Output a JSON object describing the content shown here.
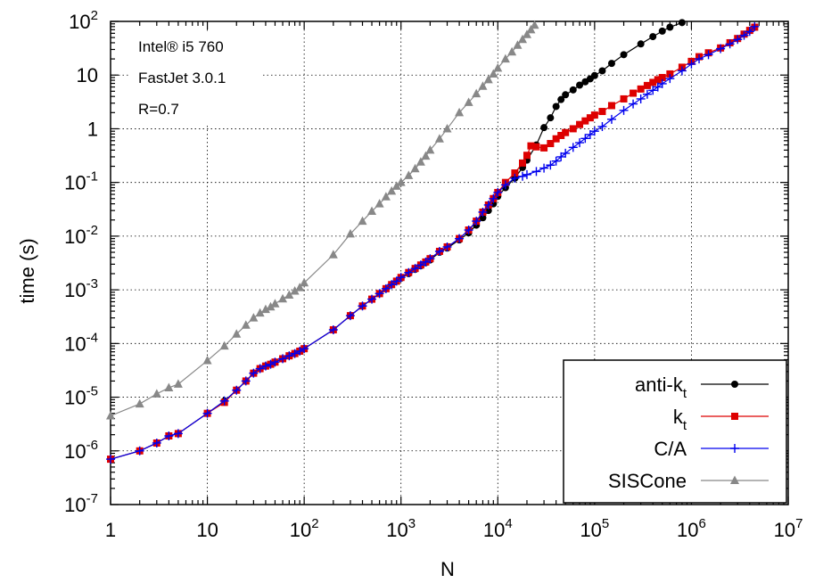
{
  "chart_data": {
    "type": "line",
    "title": "",
    "xlabel": "N",
    "ylabel": "time (s)",
    "x_scale": "log",
    "y_scale": "log",
    "xlim": [
      1,
      10000000
    ],
    "ylim": [
      1e-07,
      100
    ],
    "grid": true,
    "legend_position": "bottom-right",
    "annotations": [
      "Intel® i5 760",
      "FastJet 3.0.1",
      "R=0.7"
    ],
    "x_ticks": [
      {
        "value": 1,
        "base": "1",
        "exp": ""
      },
      {
        "value": 10,
        "base": "10",
        "exp": ""
      },
      {
        "value": 100,
        "base": "10",
        "exp": "2"
      },
      {
        "value": 1000,
        "base": "10",
        "exp": "3"
      },
      {
        "value": 10000,
        "base": "10",
        "exp": "4"
      },
      {
        "value": 100000,
        "base": "10",
        "exp": "5"
      },
      {
        "value": 1000000,
        "base": "10",
        "exp": "6"
      },
      {
        "value": 10000000,
        "base": "10",
        "exp": "7"
      }
    ],
    "y_ticks": [
      {
        "value": 1e-07,
        "base": "10",
        "exp": "-7"
      },
      {
        "value": 1e-06,
        "base": "10",
        "exp": "-6"
      },
      {
        "value": 1e-05,
        "base": "10",
        "exp": "-5"
      },
      {
        "value": 0.0001,
        "base": "10",
        "exp": "-4"
      },
      {
        "value": 0.001,
        "base": "10",
        "exp": "-3"
      },
      {
        "value": 0.01,
        "base": "10",
        "exp": "-2"
      },
      {
        "value": 0.1,
        "base": "10",
        "exp": "-1"
      },
      {
        "value": 1,
        "base": "1",
        "exp": ""
      },
      {
        "value": 10,
        "base": "10",
        "exp": ""
      },
      {
        "value": 100,
        "base": "10",
        "exp": "2"
      }
    ],
    "series": [
      {
        "name": "anti-k",
        "name_sub": "t",
        "color": "#000000",
        "marker": "circle",
        "points": [
          [
            1,
            7e-07
          ],
          [
            2,
            1e-06
          ],
          [
            3,
            1.4e-06
          ],
          [
            4,
            1.9e-06
          ],
          [
            5,
            2.1e-06
          ],
          [
            10,
            5e-06
          ],
          [
            15,
            8.5e-06
          ],
          [
            20,
            1.35e-05
          ],
          [
            25,
            2e-05
          ],
          [
            30,
            2.8e-05
          ],
          [
            35,
            3.4e-05
          ],
          [
            40,
            3.8e-05
          ],
          [
            45,
            4.1e-05
          ],
          [
            50,
            4.5e-05
          ],
          [
            60,
            5.2e-05
          ],
          [
            70,
            5.9e-05
          ],
          [
            80,
            6.5e-05
          ],
          [
            90,
            7.2e-05
          ],
          [
            100,
            8e-05
          ],
          [
            200,
            0.00018
          ],
          [
            300,
            0.00033
          ],
          [
            400,
            0.0005
          ],
          [
            500,
            0.00067
          ],
          [
            600,
            0.00085
          ],
          [
            700,
            0.00105
          ],
          [
            800,
            0.00125
          ],
          [
            900,
            0.00145
          ],
          [
            1000,
            0.00165
          ],
          [
            1200,
            0.002
          ],
          [
            1400,
            0.0024
          ],
          [
            1600,
            0.0028
          ],
          [
            1800,
            0.0032
          ],
          [
            2000,
            0.0036
          ],
          [
            2500,
            0.005
          ],
          [
            3000,
            0.006
          ],
          [
            4000,
            0.0085
          ],
          [
            5000,
            0.0115
          ],
          [
            6000,
            0.016
          ],
          [
            7000,
            0.022
          ],
          [
            8000,
            0.03
          ],
          [
            9000,
            0.04
          ],
          [
            10000,
            0.055
          ],
          [
            12000,
            0.08
          ],
          [
            15000,
            0.12
          ],
          [
            18000,
            0.19
          ],
          [
            20000,
            0.26
          ],
          [
            25000,
            0.5
          ],
          [
            30000,
            1.05
          ],
          [
            35000,
            1.6
          ],
          [
            40000,
            2.6
          ],
          [
            45000,
            3.5
          ],
          [
            50000,
            4.3
          ],
          [
            60000,
            5.3
          ],
          [
            70000,
            6.5
          ],
          [
            80000,
            7.5
          ],
          [
            90000,
            8.5
          ],
          [
            100000,
            9.8
          ],
          [
            120000,
            12
          ],
          [
            150000,
            16.5
          ],
          [
            200000,
            24
          ],
          [
            300000,
            38
          ],
          [
            400000,
            52
          ],
          [
            500000,
            66
          ],
          [
            600000,
            78
          ],
          [
            800000,
            95
          ]
        ]
      },
      {
        "name": "k",
        "name_sub": "t",
        "color": "#dd0000",
        "marker": "square",
        "points": [
          [
            1,
            7e-07
          ],
          [
            2,
            1e-06
          ],
          [
            3,
            1.4e-06
          ],
          [
            4,
            1.9e-06
          ],
          [
            5,
            2.1e-06
          ],
          [
            10,
            5e-06
          ],
          [
            15,
            8e-06
          ],
          [
            20,
            1.35e-05
          ],
          [
            25,
            2e-05
          ],
          [
            30,
            2.8e-05
          ],
          [
            35,
            3.4e-05
          ],
          [
            40,
            3.8e-05
          ],
          [
            45,
            4.1e-05
          ],
          [
            50,
            4.5e-05
          ],
          [
            60,
            5.2e-05
          ],
          [
            70,
            5.9e-05
          ],
          [
            80,
            6.5e-05
          ],
          [
            90,
            7.2e-05
          ],
          [
            100,
            8e-05
          ],
          [
            200,
            0.00018
          ],
          [
            300,
            0.00033
          ],
          [
            400,
            0.0005
          ],
          [
            500,
            0.00067
          ],
          [
            600,
            0.00085
          ],
          [
            700,
            0.00105
          ],
          [
            800,
            0.00125
          ],
          [
            900,
            0.00145
          ],
          [
            1000,
            0.0017
          ],
          [
            1200,
            0.0021
          ],
          [
            1400,
            0.0025
          ],
          [
            1600,
            0.0029
          ],
          [
            1800,
            0.0033
          ],
          [
            2000,
            0.0038
          ],
          [
            2500,
            0.0052
          ],
          [
            3000,
            0.0063
          ],
          [
            4000,
            0.009
          ],
          [
            5000,
            0.013
          ],
          [
            6000,
            0.019
          ],
          [
            7000,
            0.028
          ],
          [
            8000,
            0.038
          ],
          [
            9000,
            0.05
          ],
          [
            10000,
            0.065
          ],
          [
            12000,
            0.1
          ],
          [
            15000,
            0.15
          ],
          [
            18000,
            0.23
          ],
          [
            20000,
            0.32
          ],
          [
            22000,
            0.48
          ],
          [
            25000,
            0.46
          ],
          [
            30000,
            0.44
          ],
          [
            35000,
            0.53
          ],
          [
            40000,
            0.65
          ],
          [
            45000,
            0.75
          ],
          [
            50000,
            0.85
          ],
          [
            60000,
            1.0
          ],
          [
            70000,
            1.2
          ],
          [
            80000,
            1.4
          ],
          [
            90000,
            1.6
          ],
          [
            100000,
            1.8
          ],
          [
            120000,
            2.1
          ],
          [
            150000,
            2.7
          ],
          [
            200000,
            3.6
          ],
          [
            250000,
            4.6
          ],
          [
            300000,
            5.5
          ],
          [
            350000,
            6.4
          ],
          [
            400000,
            7.3
          ],
          [
            450000,
            8.2
          ],
          [
            500000,
            9.0
          ],
          [
            600000,
            10.5
          ],
          [
            800000,
            14
          ],
          [
            1000000,
            18
          ],
          [
            1200000,
            22
          ],
          [
            1500000,
            26
          ],
          [
            2000000,
            32
          ],
          [
            2500000,
            40
          ],
          [
            3000000,
            48
          ],
          [
            3500000,
            58
          ],
          [
            4000000,
            68
          ],
          [
            4500000,
            78
          ]
        ]
      },
      {
        "name": "C/A",
        "name_sub": "",
        "color": "#0000ee",
        "marker": "plus",
        "points": [
          [
            1,
            7e-07
          ],
          [
            2,
            1e-06
          ],
          [
            3,
            1.4e-06
          ],
          [
            4,
            1.9e-06
          ],
          [
            5,
            2.1e-06
          ],
          [
            10,
            5e-06
          ],
          [
            15,
            8.5e-06
          ],
          [
            20,
            1.35e-05
          ],
          [
            25,
            2e-05
          ],
          [
            30,
            2.8e-05
          ],
          [
            35,
            3.4e-05
          ],
          [
            40,
            3.8e-05
          ],
          [
            45,
            4.1e-05
          ],
          [
            50,
            4.5e-05
          ],
          [
            60,
            5.2e-05
          ],
          [
            70,
            5.9e-05
          ],
          [
            80,
            6.5e-05
          ],
          [
            90,
            7.2e-05
          ],
          [
            100,
            8e-05
          ],
          [
            200,
            0.00018
          ],
          [
            300,
            0.00033
          ],
          [
            400,
            0.0005
          ],
          [
            500,
            0.00067
          ],
          [
            600,
            0.00085
          ],
          [
            700,
            0.00105
          ],
          [
            800,
            0.00125
          ],
          [
            900,
            0.00145
          ],
          [
            1000,
            0.0017
          ],
          [
            1200,
            0.0021
          ],
          [
            1400,
            0.0025
          ],
          [
            1600,
            0.0029
          ],
          [
            1800,
            0.0033
          ],
          [
            2000,
            0.0038
          ],
          [
            2500,
            0.0052
          ],
          [
            3000,
            0.0063
          ],
          [
            4000,
            0.009
          ],
          [
            5000,
            0.013
          ],
          [
            6000,
            0.019
          ],
          [
            7000,
            0.028
          ],
          [
            8000,
            0.038
          ],
          [
            9000,
            0.05
          ],
          [
            10000,
            0.065
          ],
          [
            12000,
            0.09
          ],
          [
            15000,
            0.12
          ],
          [
            18000,
            0.13
          ],
          [
            20000,
            0.14
          ],
          [
            25000,
            0.16
          ],
          [
            30000,
            0.185
          ],
          [
            35000,
            0.21
          ],
          [
            40000,
            0.25
          ],
          [
            45000,
            0.3
          ],
          [
            50000,
            0.35
          ],
          [
            60000,
            0.45
          ],
          [
            70000,
            0.55
          ],
          [
            80000,
            0.66
          ],
          [
            90000,
            0.78
          ],
          [
            100000,
            0.9
          ],
          [
            120000,
            1.1
          ],
          [
            150000,
            1.5
          ],
          [
            200000,
            2.2
          ],
          [
            250000,
            2.9
          ],
          [
            300000,
            3.6
          ],
          [
            350000,
            4.4
          ],
          [
            400000,
            5.2
          ],
          [
            450000,
            6.0
          ],
          [
            500000,
            6.9
          ],
          [
            600000,
            8.6
          ],
          [
            800000,
            12
          ],
          [
            1000000,
            16
          ],
          [
            1200000,
            20
          ],
          [
            1500000,
            24
          ],
          [
            2000000,
            31
          ],
          [
            2500000,
            38
          ],
          [
            3000000,
            46
          ],
          [
            3500000,
            55
          ],
          [
            4000000,
            65
          ],
          [
            4500000,
            80
          ]
        ]
      },
      {
        "name": "SISCone",
        "name_sub": "",
        "color": "#888888",
        "marker": "triangle",
        "points": [
          [
            1,
            4.5e-06
          ],
          [
            2,
            7.5e-06
          ],
          [
            3,
            1.15e-05
          ],
          [
            4,
            1.5e-05
          ],
          [
            5,
            1.75e-05
          ],
          [
            10,
            4.8e-05
          ],
          [
            15,
            9e-05
          ],
          [
            20,
            0.00015
          ],
          [
            25,
            0.00022
          ],
          [
            30,
            0.0003
          ],
          [
            35,
            0.00037
          ],
          [
            40,
            0.00043
          ],
          [
            45,
            0.00048
          ],
          [
            50,
            0.00055
          ],
          [
            60,
            0.00068
          ],
          [
            70,
            0.0008
          ],
          [
            80,
            0.00095
          ],
          [
            90,
            0.0011
          ],
          [
            100,
            0.00135
          ],
          [
            200,
            0.0045
          ],
          [
            300,
            0.011
          ],
          [
            400,
            0.019
          ],
          [
            500,
            0.029
          ],
          [
            600,
            0.04
          ],
          [
            700,
            0.054
          ],
          [
            800,
            0.069
          ],
          [
            900,
            0.085
          ],
          [
            1000,
            0.1
          ],
          [
            1200,
            0.135
          ],
          [
            1400,
            0.18
          ],
          [
            1600,
            0.24
          ],
          [
            1800,
            0.31
          ],
          [
            2000,
            0.4
          ],
          [
            2500,
            0.65
          ],
          [
            3000,
            1.0
          ],
          [
            4000,
            2.0
          ],
          [
            5000,
            3.1
          ],
          [
            6000,
            4.5
          ],
          [
            7000,
            6.2
          ],
          [
            8000,
            8.2
          ],
          [
            9000,
            10.5
          ],
          [
            10000,
            13.5
          ],
          [
            12000,
            20
          ],
          [
            14000,
            27
          ],
          [
            16000,
            36
          ],
          [
            18000,
            46
          ],
          [
            20000,
            57
          ],
          [
            22000,
            70
          ],
          [
            24000,
            85
          ]
        ]
      }
    ]
  }
}
